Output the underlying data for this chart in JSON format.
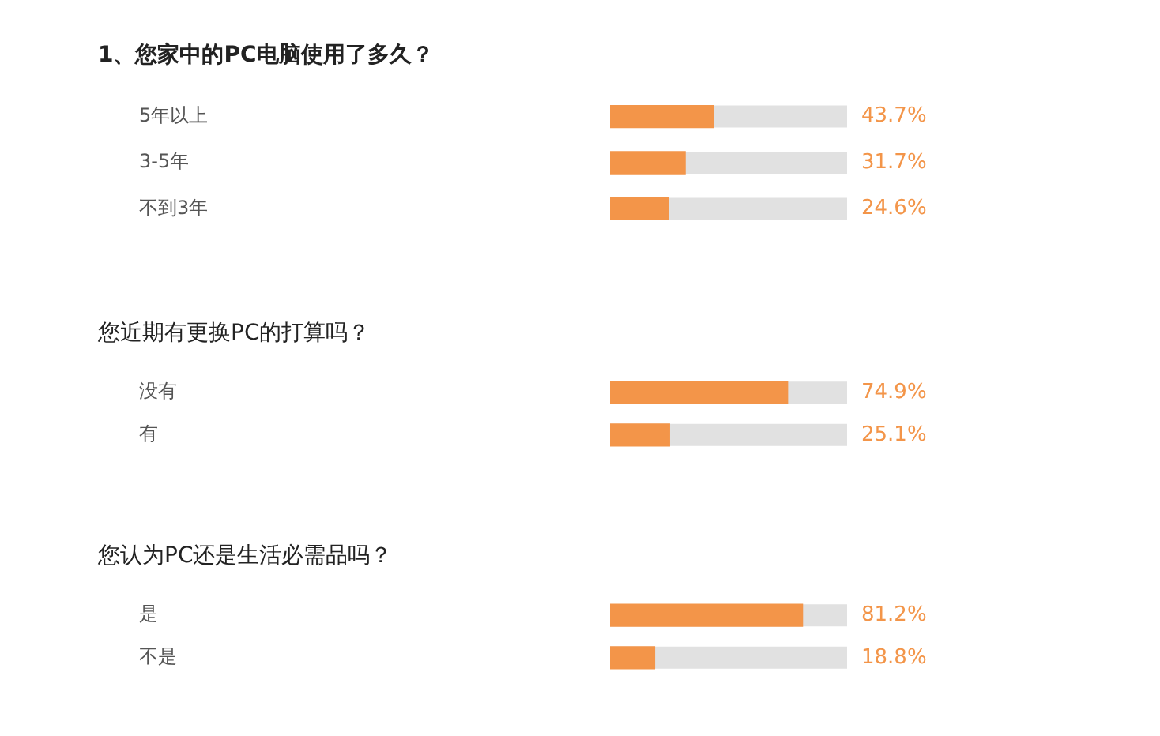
{
  "chart_data": [
    {
      "type": "bar",
      "orientation": "horizontal",
      "title": "1、您家中的PC电脑使用了多久？",
      "categories": [
        "5年以上",
        "3-5年",
        "不到3年"
      ],
      "values": [
        43.7,
        31.7,
        24.6
      ],
      "value_labels": [
        "43.7%",
        "31.7%",
        "24.6%"
      ],
      "color": "#f39549",
      "xlim": [
        0,
        100
      ],
      "tick_labels": "y",
      "grid": false,
      "legend": false
    },
    {
      "type": "bar",
      "orientation": "horizontal",
      "title": "您近期有更换PC的打算吗？",
      "categories": [
        "没有",
        "有"
      ],
      "values": [
        74.9,
        25.1
      ],
      "value_labels": [
        "74.9%",
        "25.1%"
      ],
      "color": "#f39549",
      "xlim": [
        0,
        100
      ],
      "tick_labels": "y",
      "grid": false,
      "legend": false
    },
    {
      "type": "bar",
      "orientation": "horizontal",
      "title": "您认为PC还是生活必需品吗？",
      "categories": [
        "是",
        "不是"
      ],
      "values": [
        81.2,
        18.8
      ],
      "value_labels": [
        "81.2%",
        "18.8%"
      ],
      "color": "#f39549",
      "xlim": [
        0,
        100
      ],
      "tick_labels": "y",
      "grid": false,
      "legend": false
    }
  ]
}
